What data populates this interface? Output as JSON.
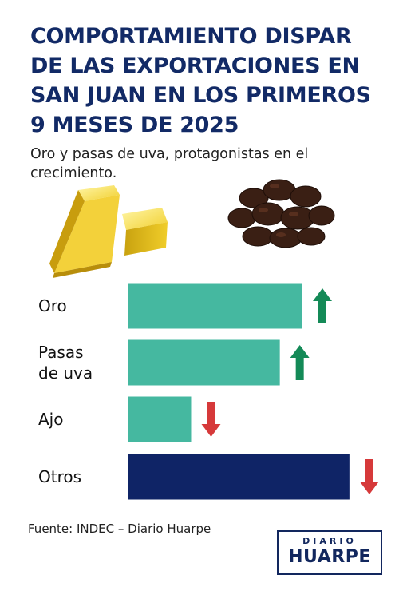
{
  "header": {
    "title": "COMPORTAMIENTO DISPAR DE LAS EXPORTACIONES EN SAN JUAN EN LOS PRIMEROS 9 MESES DE 2025",
    "subtitle": "Oro y pasas de uva, protagonistas en el crecimiento."
  },
  "illustrations": {
    "left": "gold-bars",
    "right": "raisins"
  },
  "chart_data": {
    "type": "bar",
    "orientation": "horizontal",
    "categories": [
      "Oro",
      "Pasas de uva",
      "Ajo",
      "Otros"
    ],
    "category_lines": [
      [
        "Oro"
      ],
      [
        "Pasas",
        "de uva"
      ],
      [
        "Ajo"
      ],
      [
        "Otros"
      ]
    ],
    "values": [
      100,
      87,
      36,
      127
    ],
    "trend": [
      "up",
      "up",
      "down",
      "down"
    ],
    "bar_colors": [
      "#45b8a0",
      "#45b8a0",
      "#45b8a0",
      "#0f2466"
    ],
    "arrow_colors": {
      "up": "#148a57",
      "down": "#d6393a"
    },
    "xlabel": "",
    "ylabel": "",
    "grid": false,
    "legend": "none"
  },
  "footer": {
    "source": "Fuente: INDEC – Diario Huarpe",
    "logo_line1": "DIARIO",
    "logo_line2": "HUARPE"
  }
}
